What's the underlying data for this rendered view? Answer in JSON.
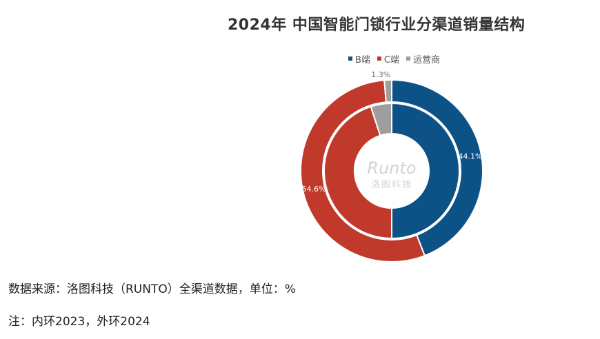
{
  "colors": {
    "b_end": "#0d5287",
    "c_end": "#c0392b",
    "operator": "#9e9e9e",
    "background": "#ffffff"
  },
  "chart_data": {
    "type": "pie",
    "title": "2024年 中国智能门锁行业分渠道销量结构",
    "legend": {
      "placement": "top",
      "entries": [
        "B端",
        "C端",
        "运营商"
      ]
    },
    "unit": "%",
    "rings": [
      {
        "ring": "outer",
        "year_label": "2024",
        "values": [
          44.1,
          54.6,
          1.3
        ],
        "data_labels": [
          "44.1%",
          "54.6%",
          "1.3%"
        ]
      },
      {
        "ring": "inner",
        "year_label": "2023",
        "values": [
          50.0,
          45.0,
          5.0
        ],
        "data_labels": []
      }
    ],
    "categories": [
      "B端",
      "C端",
      "运营商"
    ]
  },
  "watermark": {
    "text_main": "Runto",
    "text_sub": "洛图科技"
  },
  "footer": {
    "source": "数据来源：洛图科技（RUNTO）全渠道数据，单位：%",
    "note": "注：内环2023，外环2024"
  }
}
